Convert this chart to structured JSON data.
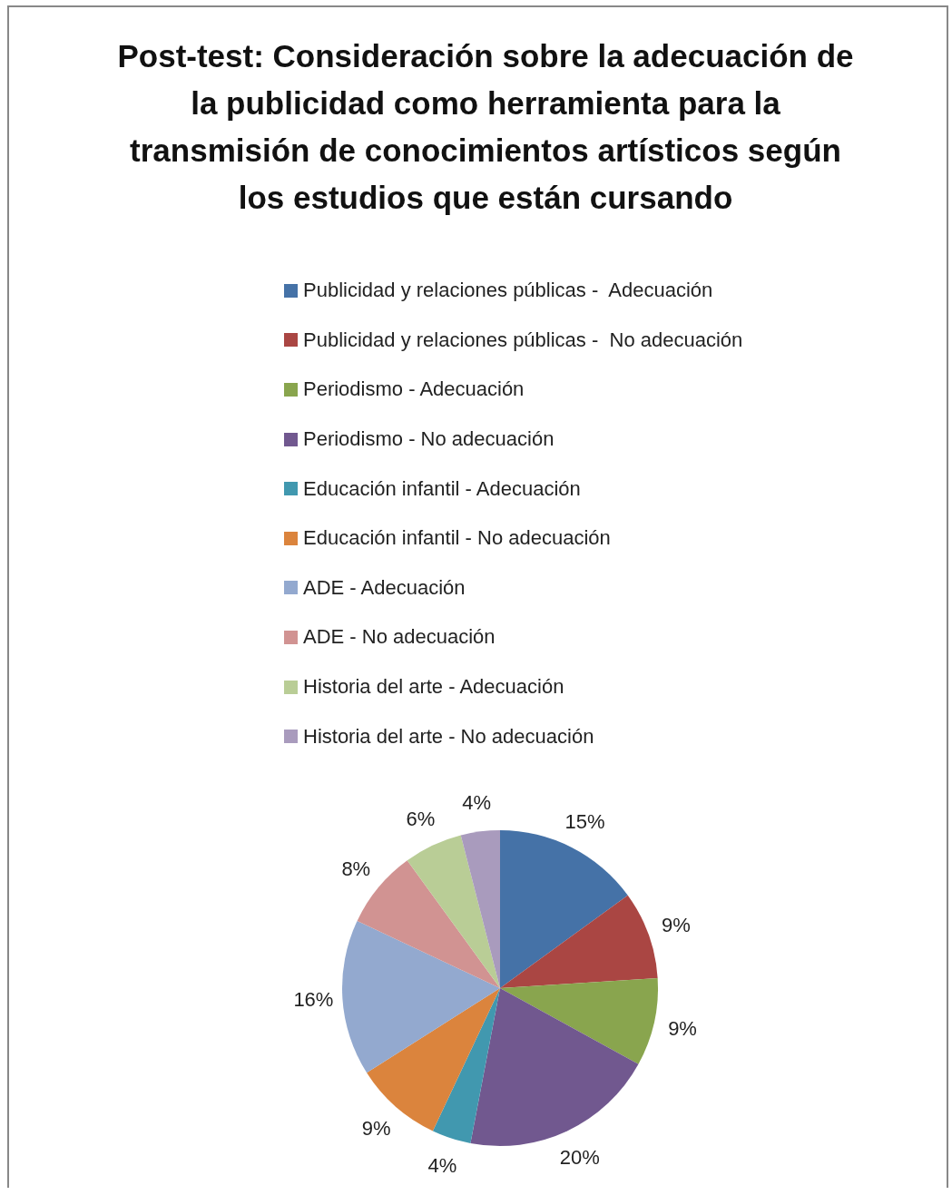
{
  "chart_data": {
    "type": "pie",
    "title": "Post-test:  Consideración sobre la adecuación de la publicidad como herramienta para la transmisión de conocimientos artísticos según los estudios que están cursando",
    "categories": [
      "Publicidad y relaciones públicas -  Adecuación",
      "Publicidad y relaciones públicas -  No adecuación",
      "Periodismo - Adecuación",
      "Periodismo - No adecuación",
      "Educación infantil - Adecuación",
      "Educación infantil - No adecuación",
      "ADE - Adecuación",
      "ADE - No adecuación",
      "Historia del arte - Adecuación",
      "Historia del arte - No adecuación"
    ],
    "values": [
      15,
      9,
      9,
      20,
      4,
      9,
      16,
      8,
      6,
      4
    ],
    "value_labels": [
      "15%",
      "9%",
      "9%",
      "20%",
      "4%",
      "9%",
      "16%",
      "8%",
      "6%",
      "4%"
    ],
    "colors": [
      "#4572a7",
      "#aa4643",
      "#89a54e",
      "#71588f",
      "#4198af",
      "#db843d",
      "#93a9cf",
      "#d19392",
      "#b9cd96",
      "#a99bbd"
    ],
    "legend": "top"
  }
}
